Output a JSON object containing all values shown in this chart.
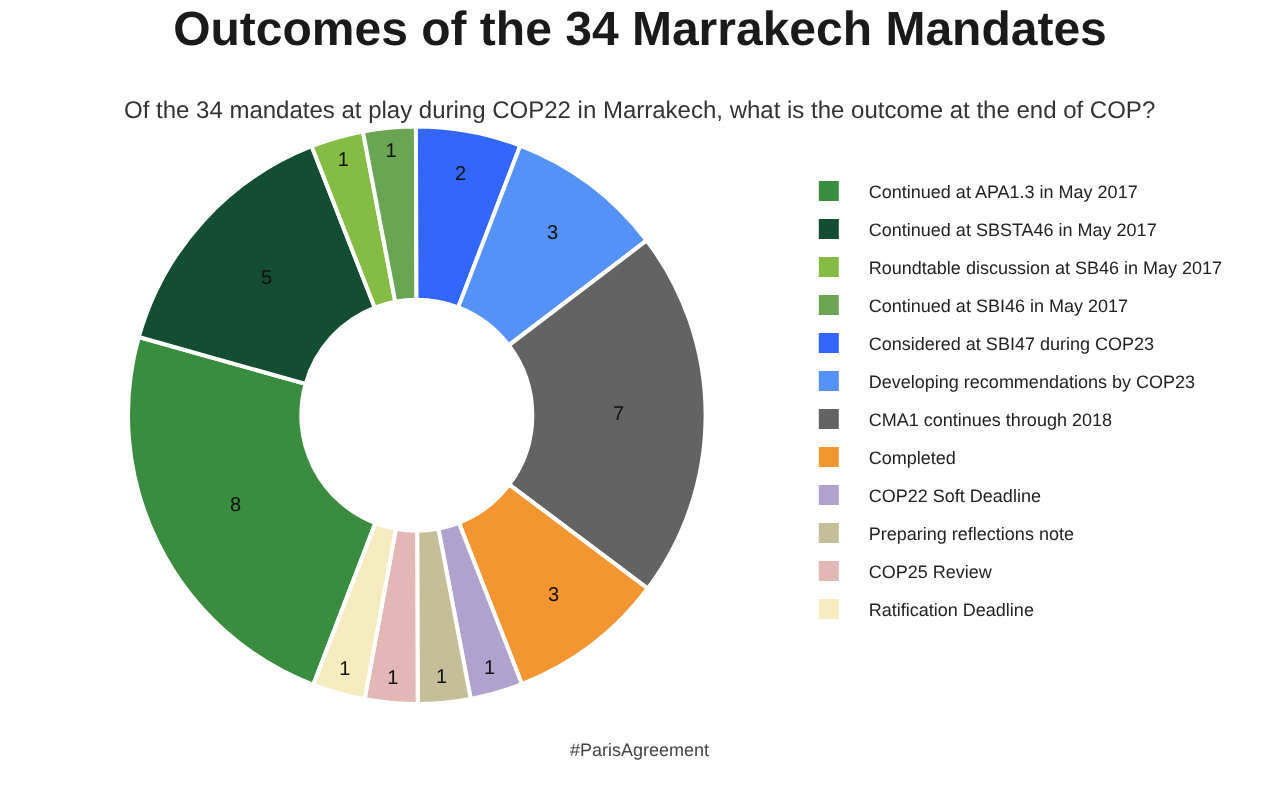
{
  "chart_data": {
    "type": "donut",
    "title": "Outcomes of the 34 Marrakech Mandates",
    "subtitle": "Of the 34 mandates at play during COP22 in Marrakech, what is the outcome at the end of COP?",
    "categories": [
      "Continued at APA1.3 in May 2017",
      "Continued at SBSTA46 in May 2017",
      "Roundtable discussion at SB46 in May 2017",
      "Continued at SBI46 in May 2017",
      "Considered at SBI47 during COP23",
      "Developing recommendations by COP23",
      "CMA1 continues through 2018",
      "Completed",
      "COP22 Soft Deadline",
      "Preparing reflections note",
      "COP25 Review",
      "Ratification Deadline"
    ],
    "values": [
      8,
      5,
      1,
      1,
      2,
      3,
      7,
      3,
      1,
      1,
      1,
      1
    ],
    "colors": [
      "#3a8c3e",
      "#134e32",
      "#84bc44",
      "#6aa554",
      "#3367fb",
      "#5592f8",
      "#636363",
      "#f39631",
      "#b0a2cc",
      "#c5bf99",
      "#e3b7b6",
      "#f5edbf"
    ],
    "data_labels": true,
    "legend": "right",
    "annotations": [
      "#ParisAgreement"
    ]
  }
}
